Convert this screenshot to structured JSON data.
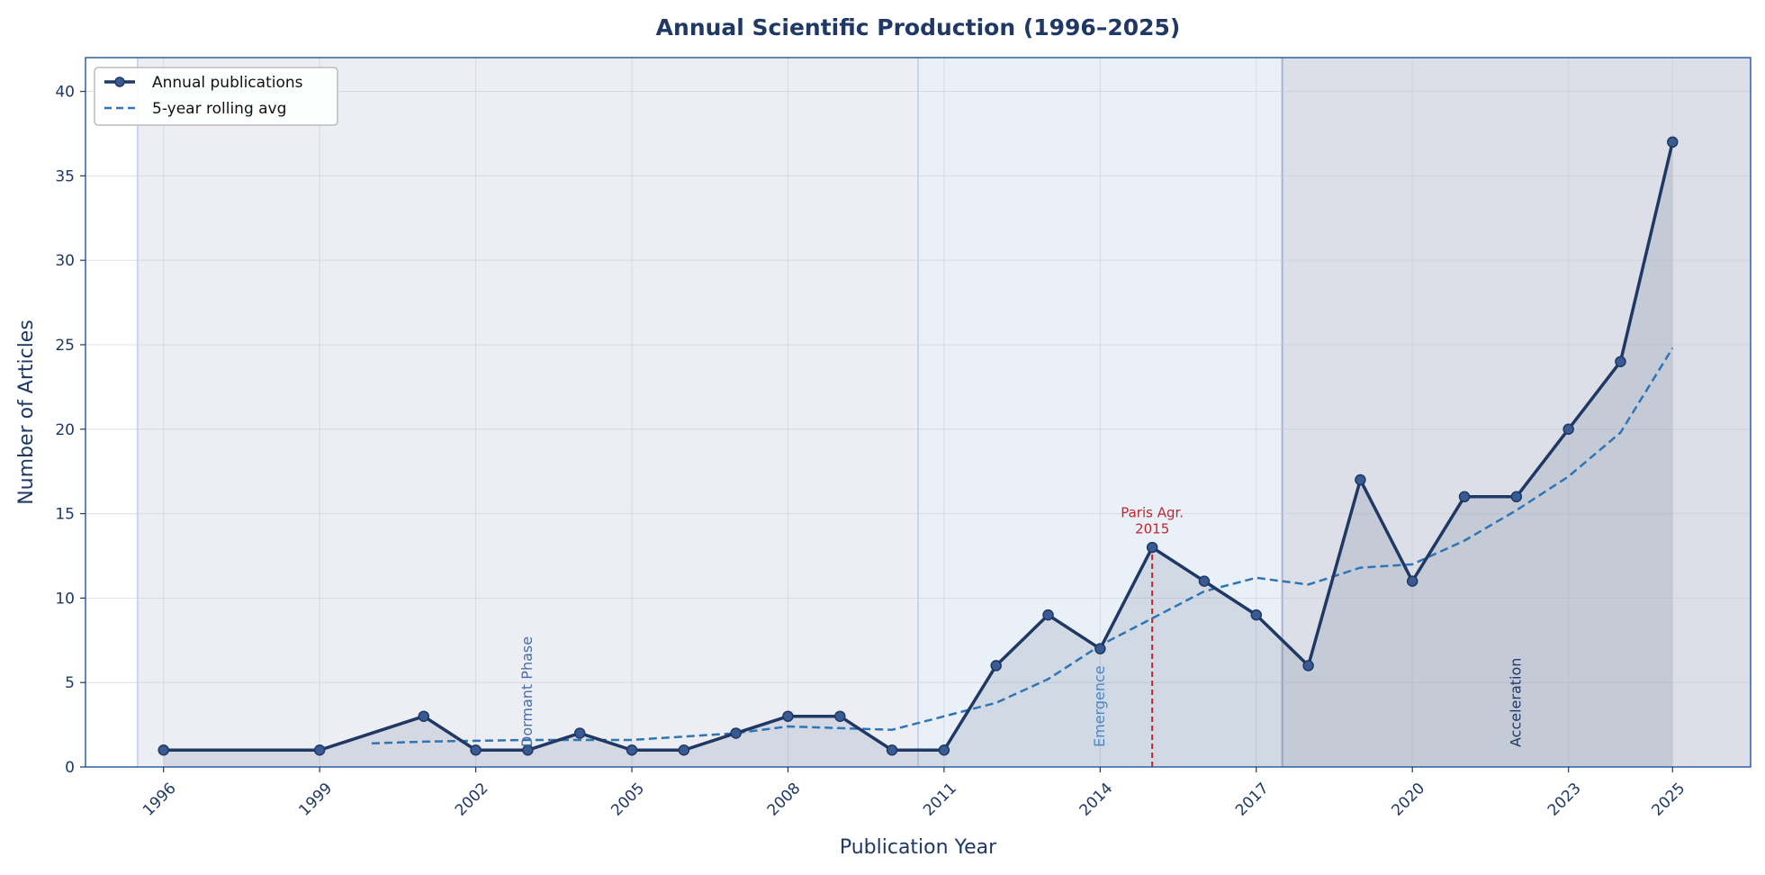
{
  "chart_data": {
    "type": "line",
    "title": "Annual Scientific Production (1996–2025)",
    "xlabel": "Publication Year",
    "ylabel": "Number of Articles",
    "xlim": [
      1994.5,
      2026.5
    ],
    "ylim": [
      0,
      42
    ],
    "x_ticks": [
      1996,
      1999,
      2002,
      2005,
      2008,
      2011,
      2014,
      2017,
      2020,
      2023,
      2025
    ],
    "y_ticks": [
      0,
      5,
      10,
      15,
      20,
      25,
      30,
      35,
      40
    ],
    "grid": true,
    "legend_position": "top-left",
    "series": [
      {
        "name": "Annual publications",
        "style": "solid-markers",
        "color": "#1f3864",
        "x": [
          1996,
          1999,
          2001,
          2002,
          2003,
          2004,
          2005,
          2006,
          2007,
          2008,
          2009,
          2010,
          2011,
          2012,
          2013,
          2014,
          2015,
          2016,
          2017,
          2018,
          2019,
          2020,
          2021,
          2022,
          2023,
          2024,
          2025
        ],
        "y": [
          1,
          1,
          3,
          1,
          1,
          2,
          1,
          1,
          2,
          3,
          3,
          1,
          1,
          6,
          9,
          7,
          13,
          11,
          9,
          6,
          17,
          11,
          16,
          16,
          20,
          24,
          37
        ]
      },
      {
        "name": "5-year rolling avg",
        "style": "dashed",
        "color": "#2e75b6",
        "x": [
          2000,
          2001,
          2002,
          2003,
          2004,
          2005,
          2006,
          2007,
          2008,
          2009,
          2010,
          2011,
          2012,
          2013,
          2014,
          2015,
          2016,
          2017,
          2018,
          2019,
          2020,
          2021,
          2022,
          2023,
          2024,
          2025
        ],
        "y": [
          1.4,
          1.5,
          1.55,
          1.6,
          1.6,
          1.6,
          1.8,
          2.0,
          2.4,
          2.3,
          2.2,
          3.0,
          3.8,
          5.2,
          7.2,
          8.8,
          10.4,
          11.2,
          10.8,
          11.8,
          12.0,
          13.4,
          15.2,
          17.2,
          19.8,
          24.8
        ]
      }
    ],
    "phases": [
      {
        "label": "Dormant Phase",
        "from": 1995.5,
        "to": 2010.5,
        "label_x": 2003,
        "fill": "#eceef4",
        "label_color": "#4a6fa5"
      },
      {
        "label": "Emergence",
        "from": 2010.5,
        "to": 2017.5,
        "label_x": 2014,
        "fill": "#eaf0f8",
        "label_color": "#4a86c5"
      },
      {
        "label": "Acceleration",
        "from": 2017.5,
        "to": 2026.5,
        "label_x": 2022,
        "fill": "#dcdfe7",
        "label_color": "#1f3864"
      }
    ],
    "event": {
      "x": 2015,
      "label_line1": "Paris Agr.",
      "label_line2": "2015",
      "color": "#c0272d"
    }
  }
}
